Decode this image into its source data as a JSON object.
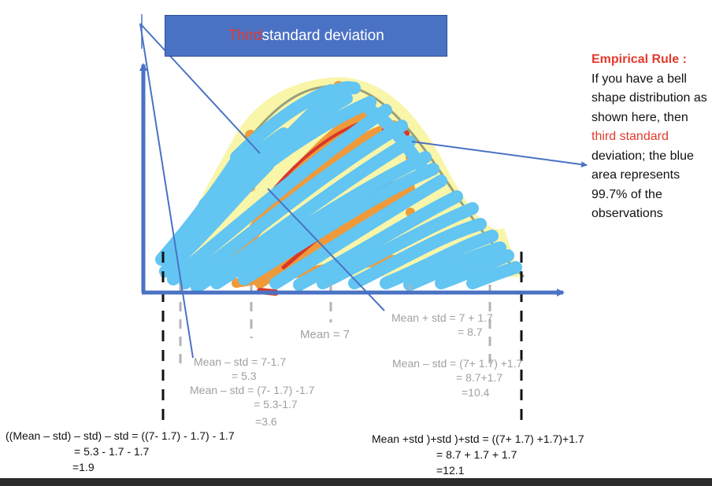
{
  "title": {
    "highlight": "Third",
    "rest": " standard deviation"
  },
  "rule": {
    "heading": "Empirical Rule :",
    "text1": "If you have a bell shape distribution as shown here, then ",
    "highlight": "third standard",
    "text2": " deviation; the blue area represents 99.7% of the observations"
  },
  "annotations": {
    "mean": "Mean = 7",
    "minus1_l1": "Mean – std = 7-1.7",
    "minus1_l2": "= 5.3",
    "minus2_l1": "Mean – std = (7- 1.7) -1.7",
    "minus2_l2": "= 5.3-1.7",
    "minus2_l3": "=3.6",
    "plus1_l1": "Mean + std = 7 + 1.7",
    "plus1_l2": "= 8.7",
    "plus2_l1": "Mean – std = (7+ 1.7) +1.7",
    "plus2_l2": "= 8.7+1.7",
    "plus2_l3": "=10.4",
    "minus3_l1": "((Mean – std) – std) – std = ((7- 1.7) - 1.7) - 1.7",
    "minus3_l2": "= 5.3 - 1.7 - 1.7",
    "minus3_l3": "=1.9",
    "plus3_l1": "Mean +std )+std )+std = ((7+ 1.7) +1.7)+1.7",
    "plus3_l2": "= 8.7 + 1.7 + 1.7",
    "plus3_l3": "=12.1"
  },
  "colors": {
    "axis": "#4a72c4",
    "title_bg": "#4a72c4",
    "scribble_blue": "#62c5f2",
    "highlight_yellow": "#f8f39a",
    "orange": "#ef9a3a",
    "red": "#d8392b",
    "curve": "#9aa07a",
    "dash_gray": "#b3b3b3",
    "dash_black": "#111111"
  }
}
